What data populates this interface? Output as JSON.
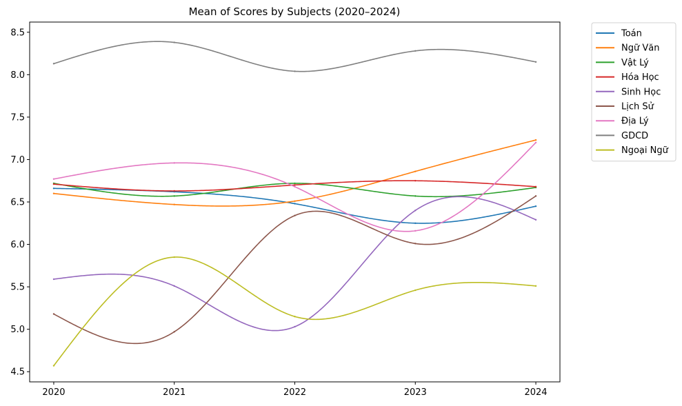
{
  "chart_data": {
    "type": "line",
    "title": "Mean of Scores by Subjects (2020–2024)",
    "xlabel": "",
    "ylabel": "",
    "x": [
      2020,
      2021,
      2022,
      2023,
      2024
    ],
    "x_tick_labels": [
      "2020",
      "2021",
      "2022",
      "2023",
      "2024"
    ],
    "y_ticks": [
      4.5,
      5.0,
      5.5,
      6.0,
      6.5,
      7.0,
      7.5,
      8.0,
      8.5
    ],
    "y_tick_labels": [
      "4.5",
      "5.0",
      "5.5",
      "6.0",
      "6.5",
      "7.0",
      "7.5",
      "8.0",
      "8.5"
    ],
    "xlim": [
      2019.8,
      2024.2
    ],
    "ylim": [
      4.38,
      8.62
    ],
    "grid": false,
    "legend_position": "outside upper right",
    "series": [
      {
        "name": "Toán",
        "color": "#1f77b4",
        "values": [
          6.66,
          6.62,
          6.48,
          6.25,
          6.45
        ]
      },
      {
        "name": "Ngữ Văn",
        "color": "#ff7f0e",
        "values": [
          6.6,
          6.47,
          6.51,
          6.86,
          7.23
        ]
      },
      {
        "name": "Vật Lý",
        "color": "#2ca02c",
        "values": [
          6.72,
          6.57,
          6.72,
          6.57,
          6.67
        ]
      },
      {
        "name": "Hóa Học",
        "color": "#d62728",
        "values": [
          6.71,
          6.63,
          6.7,
          6.75,
          6.68
        ]
      },
      {
        "name": "Sinh Học",
        "color": "#9467bd",
        "values": [
          5.59,
          5.51,
          5.03,
          6.4,
          6.29
        ]
      },
      {
        "name": "Lịch Sử",
        "color": "#8c564b",
        "values": [
          5.18,
          4.97,
          6.34,
          6.01,
          6.57
        ]
      },
      {
        "name": "Địa Lý",
        "color": "#e377c2",
        "values": [
          6.77,
          6.96,
          6.68,
          6.16,
          7.2
        ]
      },
      {
        "name": "GDCD",
        "color": "#7f7f7f",
        "values": [
          8.13,
          8.38,
          8.04,
          8.28,
          8.15
        ]
      },
      {
        "name": "Ngoại Ngữ",
        "color": "#bcbd22",
        "values": [
          4.57,
          5.85,
          5.15,
          5.46,
          5.51
        ]
      }
    ]
  }
}
